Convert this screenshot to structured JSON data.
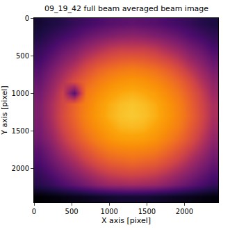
{
  "chart_data": {
    "type": "heatmap",
    "title": "09_19_42 full beam averaged beam image",
    "x_label": "X axis [pixel]",
    "y_label": "Y axis [pixel]",
    "color": "inferno",
    "xlim": [
      0,
      2448
    ],
    "ylim": [
      2448,
      0
    ],
    "xticks": [
      0,
      500,
      1000,
      1500,
      2000
    ],
    "yticks": [
      0,
      500,
      1000,
      1500,
      2000
    ],
    "x": [
      76.5,
      229.5,
      382.5,
      535.5,
      688.5,
      841.5,
      994.5,
      1147.5,
      1300.5,
      1453.5,
      1606.5,
      1759.5,
      1912.5,
      2065.5,
      2218.5,
      2371.5
    ],
    "y": [
      76.5,
      229.5,
      382.5,
      535.5,
      688.5,
      841.5,
      994.5,
      1147.5,
      1300.5,
      1453.5,
      1606.5,
      1759.5,
      1912.5,
      2065.5,
      2218.5,
      2371.5
    ],
    "cells": [
      [
        0.17,
        0.19,
        0.21,
        0.24,
        0.26,
        0.28,
        0.3,
        0.31,
        0.32,
        0.31,
        0.3,
        0.28,
        0.26,
        0.24,
        0.21,
        0.19
      ],
      [
        0.19,
        0.23,
        0.26,
        0.29,
        0.33,
        0.36,
        0.38,
        0.4,
        0.41,
        0.4,
        0.38,
        0.36,
        0.33,
        0.29,
        0.26,
        0.23
      ],
      [
        0.23,
        0.27,
        0.32,
        0.36,
        0.41,
        0.45,
        0.49,
        0.51,
        0.51,
        0.51,
        0.49,
        0.45,
        0.41,
        0.36,
        0.32,
        0.27
      ],
      [
        0.26,
        0.32,
        0.38,
        0.43,
        0.5,
        0.55,
        0.59,
        0.62,
        0.63,
        0.62,
        0.59,
        0.55,
        0.5,
        0.43,
        0.38,
        0.32
      ],
      [
        0.3,
        0.37,
        0.44,
        0.51,
        0.59,
        0.66,
        0.71,
        0.74,
        0.76,
        0.74,
        0.71,
        0.66,
        0.59,
        0.51,
        0.44,
        0.37
      ],
      [
        0.33,
        0.41,
        0.49,
        0.58,
        0.67,
        0.74,
        0.8,
        0.84,
        0.86,
        0.84,
        0.8,
        0.74,
        0.67,
        0.58,
        0.49,
        0.41
      ],
      [
        0.36,
        0.44,
        0.54,
        0.3,
        0.73,
        0.81,
        0.88,
        0.92,
        0.94,
        0.92,
        0.88,
        0.81,
        0.73,
        0.63,
        0.54,
        0.44
      ],
      [
        0.38,
        0.47,
        0.56,
        0.66,
        0.77,
        0.86,
        0.93,
        0.97,
        0.99,
        0.97,
        0.93,
        0.86,
        0.77,
        0.66,
        0.56,
        0.47
      ],
      [
        0.38,
        0.47,
        0.57,
        0.67,
        0.78,
        0.87,
        0.94,
        0.98,
        1.0,
        0.98,
        0.94,
        0.87,
        0.78,
        0.67,
        0.57,
        0.47
      ],
      [
        0.37,
        0.45,
        0.55,
        0.64,
        0.75,
        0.83,
        0.9,
        0.95,
        0.96,
        0.95,
        0.9,
        0.83,
        0.75,
        0.64,
        0.55,
        0.45
      ],
      [
        0.35,
        0.42,
        0.51,
        0.6,
        0.69,
        0.77,
        0.84,
        0.88,
        0.89,
        0.88,
        0.84,
        0.77,
        0.69,
        0.6,
        0.51,
        0.42
      ],
      [
        0.31,
        0.38,
        0.46,
        0.53,
        0.61,
        0.68,
        0.74,
        0.77,
        0.78,
        0.77,
        0.74,
        0.68,
        0.61,
        0.53,
        0.46,
        0.38
      ],
      [
        0.28,
        0.34,
        0.4,
        0.46,
        0.53,
        0.59,
        0.64,
        0.66,
        0.68,
        0.66,
        0.64,
        0.59,
        0.53,
        0.46,
        0.4,
        0.34
      ],
      [
        0.24,
        0.29,
        0.34,
        0.39,
        0.44,
        0.49,
        0.53,
        0.55,
        0.56,
        0.55,
        0.53,
        0.49,
        0.44,
        0.39,
        0.34,
        0.29
      ],
      [
        0.21,
        0.24,
        0.28,
        0.32,
        0.36,
        0.4,
        0.43,
        0.44,
        0.45,
        0.44,
        0.43,
        0.4,
        0.36,
        0.32,
        0.28,
        0.24
      ],
      [
        0.1,
        0.11,
        0.12,
        0.13,
        0.14,
        0.15,
        0.16,
        0.17,
        0.17,
        0.17,
        0.16,
        0.15,
        0.14,
        0.13,
        0.12,
        0.11
      ]
    ]
  }
}
